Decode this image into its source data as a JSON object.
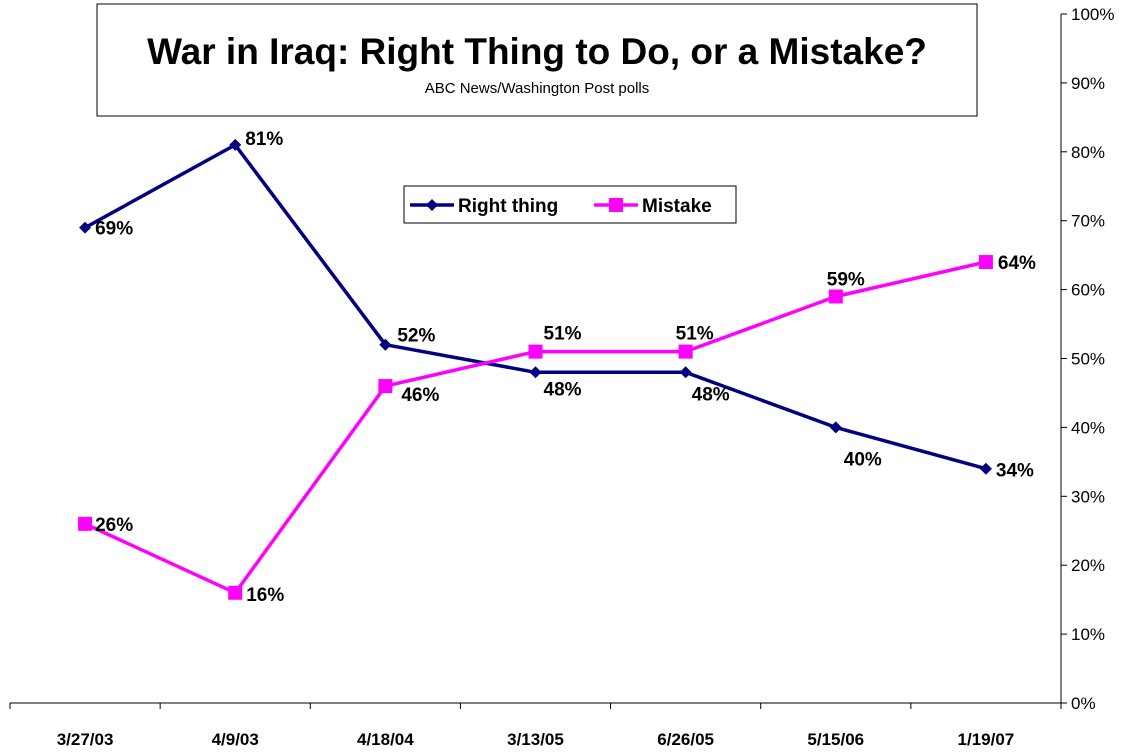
{
  "chart_data": {
    "type": "line",
    "title": "War in Iraq: Right Thing to Do, or a Mistake?",
    "subtitle": "ABC News/Washington Post polls",
    "categories": [
      "3/27/03",
      "4/9/03",
      "4/18/04",
      "3/13/05",
      "6/26/05",
      "5/15/06",
      "1/19/07"
    ],
    "series": [
      {
        "name": "Right thing",
        "color": "#000080",
        "marker": "diamond",
        "values": [
          69,
          81,
          52,
          48,
          48,
          40,
          34
        ],
        "labels": [
          "69%",
          "81%",
          "52%",
          "48%",
          "48%",
          "40%",
          "34%"
        ]
      },
      {
        "name": "Mistake",
        "color": "#ff00ff",
        "marker": "square",
        "values": [
          26,
          16,
          46,
          51,
          51,
          59,
          64
        ],
        "labels": [
          "26%",
          "16%",
          "46%",
          "51%",
          "51%",
          "59%",
          "64%"
        ]
      }
    ],
    "yaxis": {
      "position": "right",
      "ylim": [
        0,
        100
      ],
      "step": 10,
      "tick_labels": [
        "0%",
        "10%",
        "20%",
        "30%",
        "40%",
        "50%",
        "60%",
        "70%",
        "80%",
        "90%",
        "100%"
      ]
    },
    "grid": false,
    "legend": {
      "position": "center-top",
      "entries": [
        "Right thing",
        "Mistake"
      ]
    }
  }
}
